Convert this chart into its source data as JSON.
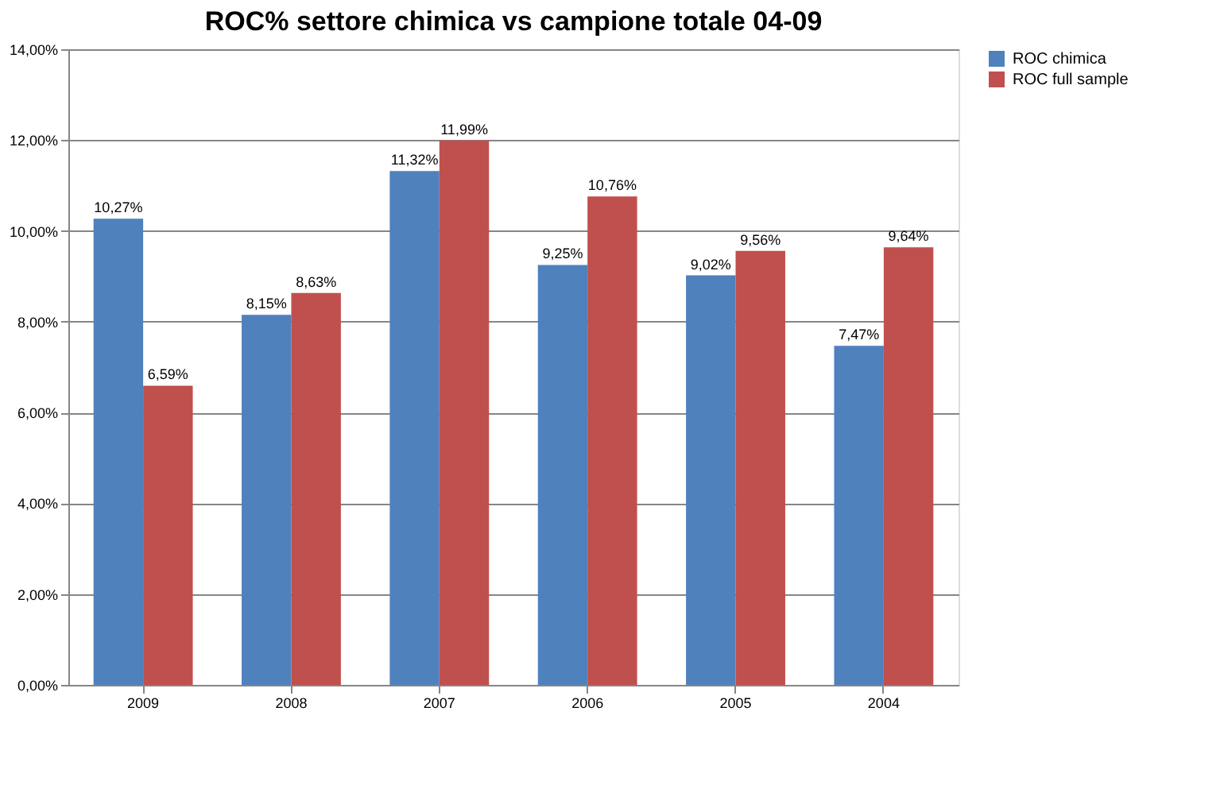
{
  "chart_data": {
    "type": "bar",
    "title": "ROC% settore chimica vs campione totale 04-09",
    "categories": [
      "2009",
      "2008",
      "2007",
      "2006",
      "2005",
      "2004"
    ],
    "series": [
      {
        "name": "ROC chimica",
        "color": "#4f81bd",
        "values": [
          10.27,
          8.15,
          11.32,
          9.25,
          9.02,
          7.47
        ],
        "value_labels": [
          "10,27%",
          "8,15%",
          "11,32%",
          "9,25%",
          "9,02%",
          "7,47%"
        ]
      },
      {
        "name": "ROC full sample",
        "color": "#c0504d",
        "values": [
          6.59,
          8.63,
          11.99,
          10.76,
          9.56,
          9.64
        ],
        "value_labels": [
          "6,59%",
          "8,63%",
          "11,99%",
          "10,76%",
          "9,56%",
          "9,64%"
        ]
      }
    ],
    "ylim": [
      0,
      14
    ],
    "yticks": [
      {
        "value": 0,
        "label": "0,00%"
      },
      {
        "value": 2,
        "label": "2,00%"
      },
      {
        "value": 4,
        "label": "4,00%"
      },
      {
        "value": 6,
        "label": "6,00%"
      },
      {
        "value": 8,
        "label": "8,00%"
      },
      {
        "value": 10,
        "label": "10,00%"
      },
      {
        "value": 12,
        "label": "12,00%"
      },
      {
        "value": 14,
        "label": "14,00%"
      }
    ],
    "grid": "y",
    "legend": "right"
  }
}
